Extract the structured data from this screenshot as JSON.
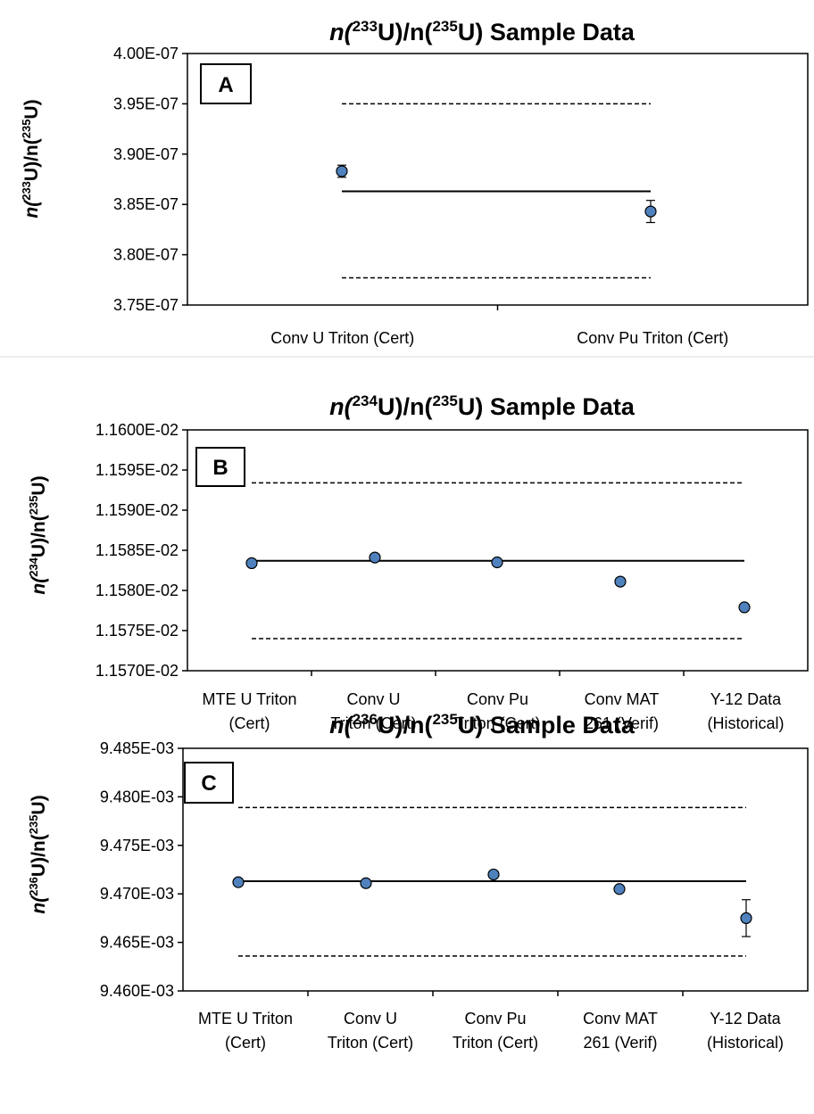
{
  "chart_data": [
    {
      "type": "scatter",
      "panel": "A",
      "title": {
        "pre": "n(",
        "sup1": "233",
        "mid": "U)/n(",
        "sup2": "235",
        "post": "U) Sample Data"
      },
      "ylabel": {
        "pre": "n(",
        "sup1": "233",
        "mid": "U)/n(",
        "sup2": "235",
        "post": "U)"
      },
      "ylim": [
        3.75e-07,
        4e-07
      ],
      "yticks": [
        3.75e-07,
        3.8e-07,
        3.85e-07,
        3.9e-07,
        3.95e-07,
        4e-07
      ],
      "ytick_labels": [
        "3.75E-07",
        "3.80E-07",
        "3.85E-07",
        "3.90E-07",
        "3.95E-07",
        "4.00E-07"
      ],
      "categories": [
        [
          "Conv U Triton (Cert)"
        ],
        [
          "Conv Pu Triton (Cert)"
        ]
      ],
      "values": [
        3.883e-07,
        3.843e-07
      ],
      "errors": [
        6e-10,
        1.1e-09
      ],
      "reference_line": 3.863e-07,
      "upper_limit": 3.95e-07,
      "lower_limit": 3.777e-07,
      "marker_color": "#4f81bd",
      "grid": false
    },
    {
      "type": "scatter",
      "panel": "B",
      "title": {
        "pre": "n(",
        "sup1": "234",
        "mid": "U)/n(",
        "sup2": "235",
        "post": "U) Sample Data"
      },
      "ylabel": {
        "pre": "n(",
        "sup1": "234",
        "mid": "U)/n(",
        "sup2": "235",
        "post": "U)"
      },
      "ylim": [
        0.01157,
        0.0116
      ],
      "yticks": [
        0.01157,
        0.011575,
        0.01158,
        0.011585,
        0.01159,
        0.011595,
        0.0116
      ],
      "ytick_labels": [
        "1.1570E-02",
        "1.1575E-02",
        "1.1580E-02",
        "1.1585E-02",
        "1.1590E-02",
        "1.1595E-02",
        "1.1600E-02"
      ],
      "categories": [
        [
          "MTE U Triton",
          "(Cert)"
        ],
        [
          "Conv U",
          "Triton (Cert)"
        ],
        [
          "Conv Pu",
          "Triton (Cert)"
        ],
        [
          "Conv MAT",
          "261 (Verif)"
        ],
        [
          "Y-12 Data",
          "(Historical)"
        ]
      ],
      "values": [
        0.0115834,
        0.0115841,
        0.0115835,
        0.0115811,
        0.0115779
      ],
      "errors": [
        0,
        0,
        0,
        0,
        3.8e-08
      ],
      "reference_line": 0.0115837,
      "upper_limit": 0.0115934,
      "lower_limit": 0.011574,
      "marker_color": "#4f81bd",
      "grid": false
    },
    {
      "type": "scatter",
      "panel": "C",
      "title": {
        "pre": "n(",
        "sup1": "236",
        "mid": "U)/n(",
        "sup2": "235",
        "post": "U) Sample Data"
      },
      "ylabel": {
        "pre": "n(",
        "sup1": "236",
        "mid": "U)/n(",
        "sup2": "235",
        "post": "U)"
      },
      "ylim": [
        0.00946,
        0.009485
      ],
      "yticks": [
        0.00946,
        0.009465,
        0.00947,
        0.009475,
        0.00948,
        0.009485
      ],
      "ytick_labels": [
        "9.460E-03",
        "9.465E-03",
        "9.470E-03",
        "9.475E-03",
        "9.480E-03",
        "9.485E-03"
      ],
      "categories": [
        [
          "MTE U Triton",
          "(Cert)"
        ],
        [
          "Conv U",
          "Triton (Cert)"
        ],
        [
          "Conv Pu",
          "Triton (Cert)"
        ],
        [
          "Conv MAT",
          "261 (Verif)"
        ],
        [
          "Y-12 Data",
          "(Historical)"
        ]
      ],
      "values": [
        0.0094712,
        0.0094711,
        0.009472,
        0.0094705,
        0.0094675
      ],
      "errors": [
        0,
        0,
        0,
        0,
        1.9e-06
      ],
      "reference_line": 0.0094713,
      "upper_limit": 0.0094789,
      "lower_limit": 0.0094636,
      "marker_color": "#4f81bd",
      "grid": false
    }
  ]
}
